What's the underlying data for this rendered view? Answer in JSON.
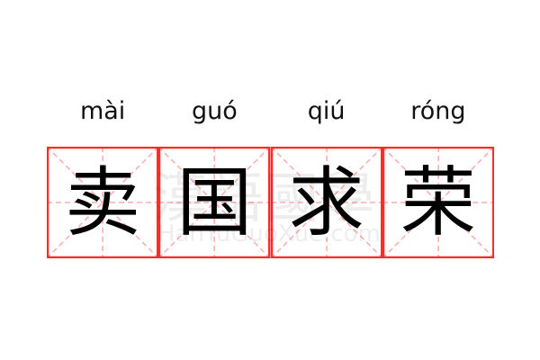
{
  "entries": [
    {
      "pinyin": "mài",
      "char": "卖"
    },
    {
      "pinyin": "guó",
      "char": "国"
    },
    {
      "pinyin": "qiú",
      "char": "求"
    },
    {
      "pinyin": "róng",
      "char": "荣"
    }
  ],
  "watermark": {
    "chinese": "漢語國學",
    "latin": "HanYuGuoXue.com"
  },
  "colors": {
    "border": "#ff2a2a",
    "guide": "#ffaaaa",
    "text": "#000000"
  }
}
